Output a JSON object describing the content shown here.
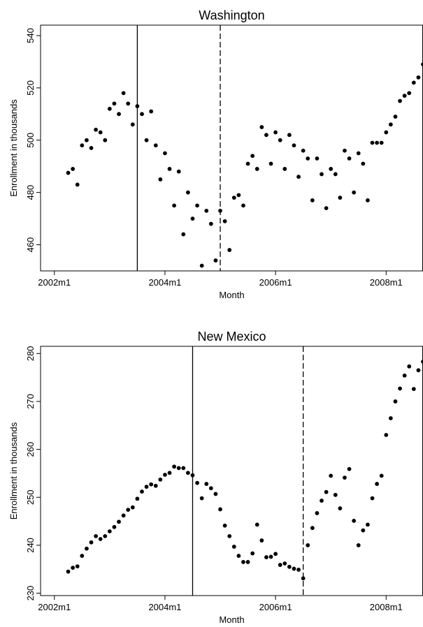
{
  "chart_data": [
    {
      "type": "scatter",
      "title": "Washington",
      "xlabel": "Month",
      "ylabel": "Enrollment in thousands",
      "x_tick_labels": [
        "2002m1",
        "2004m1",
        "2006m1",
        "2008m1"
      ],
      "x_tick_values": [
        "2002-01",
        "2004-01",
        "2006-01",
        "2008-01"
      ],
      "y_ticks": [
        460,
        480,
        500,
        520,
        540
      ],
      "xlim": [
        "2001-10",
        "2008-09"
      ],
      "ylim": [
        450,
        544
      ],
      "grid": false,
      "reference_lines": [
        {
          "x": "2003-07",
          "style": "solid"
        },
        {
          "x": "2005-01",
          "style": "dashed"
        }
      ],
      "series": [
        {
          "x": [
            "2002-04",
            "2002-05",
            "2002-06",
            "2002-07",
            "2002-08",
            "2002-09",
            "2002-10",
            "2002-11",
            "2002-12",
            "2003-01",
            "2003-02",
            "2003-03",
            "2003-04",
            "2003-05",
            "2003-06",
            "2003-07",
            "2003-08",
            "2003-09",
            "2003-10",
            "2003-11",
            "2003-12",
            "2004-01",
            "2004-02",
            "2004-03",
            "2004-04",
            "2004-05",
            "2004-06",
            "2004-07",
            "2004-08",
            "2004-09",
            "2004-10",
            "2004-11",
            "2004-12",
            "2005-01",
            "2005-02",
            "2005-03",
            "2005-04",
            "2005-05",
            "2005-06",
            "2005-07",
            "2005-08",
            "2005-09",
            "2005-10",
            "2005-11",
            "2005-12",
            "2006-01",
            "2006-02",
            "2006-03",
            "2006-04",
            "2006-05",
            "2006-06",
            "2006-07",
            "2006-08",
            "2006-09",
            "2006-10",
            "2006-11",
            "2006-12",
            "2007-01",
            "2007-02",
            "2007-03",
            "2007-04",
            "2007-05",
            "2007-06",
            "2007-07",
            "2007-08",
            "2007-09",
            "2007-10",
            "2007-11",
            "2007-12",
            "2008-01",
            "2008-02",
            "2008-03",
            "2008-04",
            "2008-05",
            "2008-06",
            "2008-07",
            "2008-08",
            "2008-09"
          ],
          "y": [
            487.5,
            489,
            483,
            498,
            500,
            497,
            504,
            503,
            500,
            512,
            514,
            510,
            518,
            514,
            506,
            513,
            510,
            500,
            511,
            498,
            485,
            495,
            489,
            475,
            488,
            464,
            480,
            470,
            475,
            452,
            473,
            468,
            454,
            473,
            469,
            458,
            478,
            479,
            475,
            491,
            494,
            489,
            505,
            502,
            491,
            503,
            500,
            489,
            502,
            498,
            486,
            496,
            493,
            477,
            493,
            487,
            474,
            489,
            487,
            478,
            496,
            493,
            480,
            495,
            491,
            477,
            499,
            499,
            499,
            503,
            506,
            509,
            515,
            517,
            518,
            522,
            524,
            529
          ]
        }
      ]
    },
    {
      "type": "scatter",
      "title": "New Mexico",
      "xlabel": "Month",
      "ylabel": "Enrollment in thousands",
      "x_tick_labels": [
        "2002m1",
        "2004m1",
        "2006m1",
        "2008m1"
      ],
      "x_tick_values": [
        "2002-01",
        "2004-01",
        "2006-01",
        "2008-01"
      ],
      "y_ticks": [
        230,
        240,
        250,
        260,
        270,
        280
      ],
      "xlim": [
        "2001-10",
        "2008-09"
      ],
      "ylim": [
        229.5,
        281.5
      ],
      "grid": false,
      "reference_lines": [
        {
          "x": "2004-07",
          "style": "solid"
        },
        {
          "x": "2006-07",
          "style": "dashed"
        }
      ],
      "series": [
        {
          "x": [
            "2002-04",
            "2002-05",
            "2002-06",
            "2002-07",
            "2002-08",
            "2002-09",
            "2002-10",
            "2002-11",
            "2002-12",
            "2003-01",
            "2003-02",
            "2003-03",
            "2003-04",
            "2003-05",
            "2003-06",
            "2003-07",
            "2003-08",
            "2003-09",
            "2003-10",
            "2003-11",
            "2003-12",
            "2004-01",
            "2004-02",
            "2004-03",
            "2004-04",
            "2004-05",
            "2004-06",
            "2004-07",
            "2004-08",
            "2004-09",
            "2004-10",
            "2004-11",
            "2004-12",
            "2005-01",
            "2005-02",
            "2005-03",
            "2005-04",
            "2005-05",
            "2005-06",
            "2005-07",
            "2005-08",
            "2005-09",
            "2005-10",
            "2005-11",
            "2005-12",
            "2006-01",
            "2006-02",
            "2006-03",
            "2006-04",
            "2006-05",
            "2006-06",
            "2006-07",
            "2006-08",
            "2006-09",
            "2006-10",
            "2006-11",
            "2006-12",
            "2007-01",
            "2007-02",
            "2007-03",
            "2007-04",
            "2007-05",
            "2007-06",
            "2007-07",
            "2007-08",
            "2007-09",
            "2007-10",
            "2007-11",
            "2007-12",
            "2008-01",
            "2008-02",
            "2008-03",
            "2008-04",
            "2008-05",
            "2008-06",
            "2008-07",
            "2008-08",
            "2008-09"
          ],
          "y": [
            234.5,
            235.3,
            235.6,
            237.8,
            239.3,
            240.6,
            241.9,
            241.3,
            241.9,
            242.9,
            243.8,
            244.9,
            246.2,
            247.4,
            247.9,
            249.7,
            251.2,
            252.2,
            252.7,
            252.4,
            253.7,
            254.7,
            255.1,
            256.4,
            256.1,
            256.1,
            255.1,
            254.6,
            253.0,
            249.8,
            252.8,
            251.9,
            250.7,
            247.5,
            244.1,
            241.9,
            239.7,
            237.8,
            236.5,
            236.5,
            238.3,
            244.3,
            241.0,
            237.5,
            237.6,
            238.2,
            235.9,
            236.2,
            235.5,
            235.1,
            234.9,
            233.1,
            240.0,
            243.6,
            246.7,
            249.3,
            251.1,
            254.5,
            250.5,
            247.7,
            254.1,
            255.9,
            245.1,
            240.0,
            243.1,
            244.3,
            249.8,
            252.8,
            254.5,
            263.0,
            266.5,
            270.0,
            272.7,
            275.4,
            277.3,
            272.6,
            276.5,
            278.3
          ]
        }
      ]
    }
  ]
}
